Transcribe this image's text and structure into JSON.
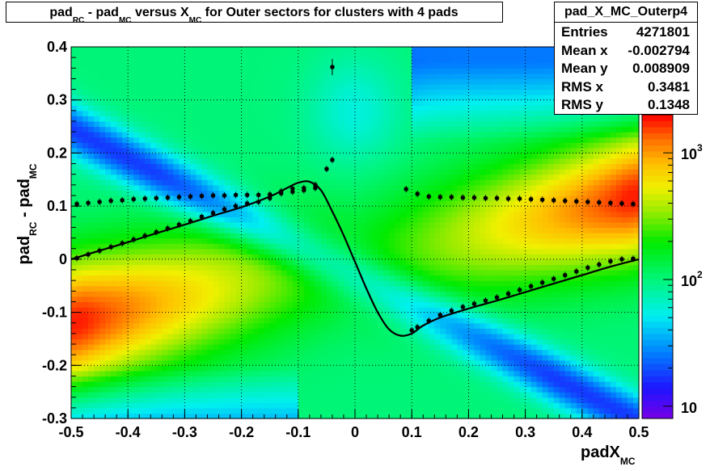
{
  "chart_data": {
    "type": "heatmap",
    "title": {
      "parts": [
        {
          "text": "pad",
          "sub": "RC"
        },
        {
          "text": " - pad",
          "sub": "MC"
        },
        {
          "text": " versus X",
          "sub": "MC"
        },
        {
          "text": " for Outer sectors for clusters with 4 pads",
          "sub": ""
        }
      ]
    },
    "xlabel": {
      "text": "padX",
      "sub": "MC"
    },
    "ylabel": {
      "text": "pad",
      "sub1": "RC",
      "mid": " - pad",
      "sub2": "MC"
    },
    "xlim": [
      -0.5,
      0.5
    ],
    "ylim": [
      -0.3,
      0.4
    ],
    "x_ticks": [
      "-0.5",
      "-0.4",
      "-0.3",
      "-0.2",
      "-0.1",
      "0",
      "0.1",
      "0.2",
      "0.3",
      "0.4",
      "0.5"
    ],
    "x_tick_values": [
      -0.5,
      -0.4,
      -0.3,
      -0.2,
      -0.1,
      0,
      0.1,
      0.2,
      0.3,
      0.4,
      0.5
    ],
    "y_ticks": [
      "-0.3",
      "-0.2",
      "-0.1",
      "0",
      "0.1",
      "0.2",
      "0.3",
      "0.4"
    ],
    "y_tick_values": [
      -0.3,
      -0.2,
      -0.1,
      0,
      0.1,
      0.2,
      0.3,
      0.4
    ],
    "grid": true,
    "z_scale": "log",
    "z_range": [
      8,
      2000
    ],
    "colorbar_ticks": [
      {
        "base": "10",
        "exp": "",
        "value": 10
      },
      {
        "base": "10",
        "exp": "2",
        "value": 100
      },
      {
        "base": "10",
        "exp": "3",
        "value": 1000
      }
    ],
    "stats": {
      "name": "pad_X_MC_Outerp4",
      "rows": [
        {
          "label": "Entries",
          "value": "4271801"
        },
        {
          "label": "Mean x",
          "value": "-0.002794"
        },
        {
          "label": "Mean y",
          "value": "0.008909"
        },
        {
          "label": "RMS x",
          "value": "0.3481"
        },
        {
          "label": "RMS y",
          "value": "0.1348"
        }
      ]
    },
    "series": [
      {
        "kind": "profile-mean",
        "x": [
          -0.49,
          -0.47,
          -0.45,
          -0.43,
          -0.41,
          -0.39,
          -0.37,
          -0.35,
          -0.33,
          -0.31,
          -0.29,
          -0.27,
          -0.25,
          -0.23,
          -0.21,
          -0.19,
          -0.17,
          -0.15,
          -0.13,
          -0.11,
          -0.09,
          -0.07,
          -0.05,
          -0.04
        ],
        "y": [
          0.002,
          0.009,
          0.016,
          0.023,
          0.03,
          0.037,
          0.044,
          0.051,
          0.058,
          0.065,
          0.072,
          0.08,
          0.087,
          0.094,
          0.1,
          0.105,
          0.108,
          0.115,
          0.128,
          0.133,
          0.134,
          0.14,
          0.17,
          0.187
        ]
      },
      {
        "kind": "profile-rms",
        "x": [
          -0.49,
          -0.47,
          -0.45,
          -0.43,
          -0.41,
          -0.39,
          -0.37,
          -0.35,
          -0.33,
          -0.31,
          -0.29,
          -0.27,
          -0.25,
          -0.23,
          -0.21,
          -0.19,
          -0.17,
          -0.15,
          -0.13,
          -0.11,
          -0.09,
          -0.07,
          0.09,
          0.11,
          0.13,
          0.15,
          0.17,
          0.19,
          0.21,
          0.23,
          0.25,
          0.27,
          0.29,
          0.31,
          0.33,
          0.35,
          0.37,
          0.39,
          0.41,
          0.43,
          0.45,
          0.47,
          0.49
        ],
        "y": [
          0.104,
          0.106,
          0.108,
          0.11,
          0.111,
          0.113,
          0.114,
          0.115,
          0.116,
          0.117,
          0.118,
          0.119,
          0.12,
          0.12,
          0.121,
          0.121,
          0.121,
          0.122,
          0.124,
          0.127,
          0.13,
          0.134,
          0.132,
          0.123,
          0.118,
          0.117,
          0.117,
          0.116,
          0.116,
          0.115,
          0.115,
          0.114,
          0.114,
          0.113,
          0.112,
          0.111,
          0.11,
          0.109,
          0.108,
          0.107,
          0.106,
          0.105,
          0.104
        ]
      },
      {
        "kind": "profile-mean",
        "x": [
          0.1,
          0.11,
          0.13,
          0.15,
          0.17,
          0.19,
          0.21,
          0.23,
          0.25,
          0.27,
          0.29,
          0.31,
          0.33,
          0.35,
          0.37,
          0.39,
          0.41,
          0.43,
          0.45,
          0.47,
          0.49
        ],
        "y": [
          -0.134,
          -0.128,
          -0.116,
          -0.105,
          -0.097,
          -0.09,
          -0.084,
          -0.078,
          -0.072,
          -0.065,
          -0.058,
          -0.051,
          -0.044,
          -0.037,
          -0.03,
          -0.023,
          -0.016,
          -0.01,
          -0.004,
          0.0,
          0.001
        ]
      },
      {
        "kind": "outlier",
        "x": [
          -0.04
        ],
        "y": [
          0.362
        ]
      }
    ],
    "fit_curve": {
      "label": "",
      "x": [
        -0.5,
        -0.45,
        -0.4,
        -0.35,
        -0.3,
        -0.25,
        -0.2,
        -0.15,
        -0.12,
        -0.1,
        -0.08,
        -0.06,
        -0.04,
        -0.02,
        0.0,
        0.02,
        0.04,
        0.06,
        0.08,
        0.1,
        0.12,
        0.15,
        0.2,
        0.25,
        0.3,
        0.35,
        0.4,
        0.45,
        0.5
      ],
      "y": [
        0.0,
        0.016,
        0.032,
        0.049,
        0.065,
        0.082,
        0.098,
        0.118,
        0.134,
        0.144,
        0.146,
        0.13,
        0.09,
        0.045,
        -0.005,
        -0.055,
        -0.1,
        -0.132,
        -0.144,
        -0.14,
        -0.125,
        -0.11,
        -0.093,
        -0.078,
        -0.062,
        -0.046,
        -0.03,
        -0.014,
        0.0
      ]
    }
  }
}
